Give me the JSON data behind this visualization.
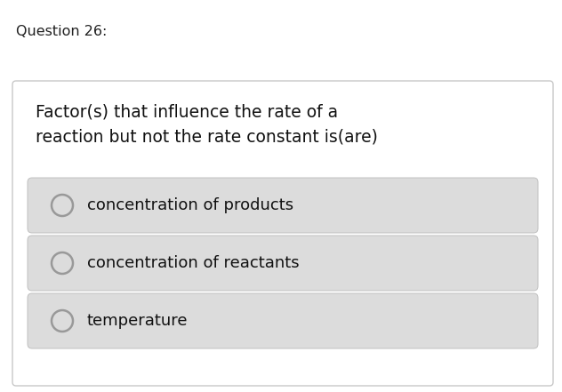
{
  "title": "Question 26:",
  "question_line1": "Factor(s) that influence the rate of a",
  "question_line2": "reaction but not the rate constant is(are)",
  "options": [
    "concentration of products",
    "concentration of reactants",
    "temperature"
  ],
  "bg_color": "#ffffff",
  "card_bg": "#ffffff",
  "card_border": "#c8c8c8",
  "option_bg": "#dcdcdc",
  "option_border": "#c0c0c0",
  "title_fontsize": 11.5,
  "question_fontsize": 13.5,
  "option_fontsize": 13,
  "title_color": "#222222",
  "question_color": "#111111",
  "option_text_color": "#111111",
  "circle_edge_color": "#999999",
  "circle_face_color": "#dcdcdc"
}
